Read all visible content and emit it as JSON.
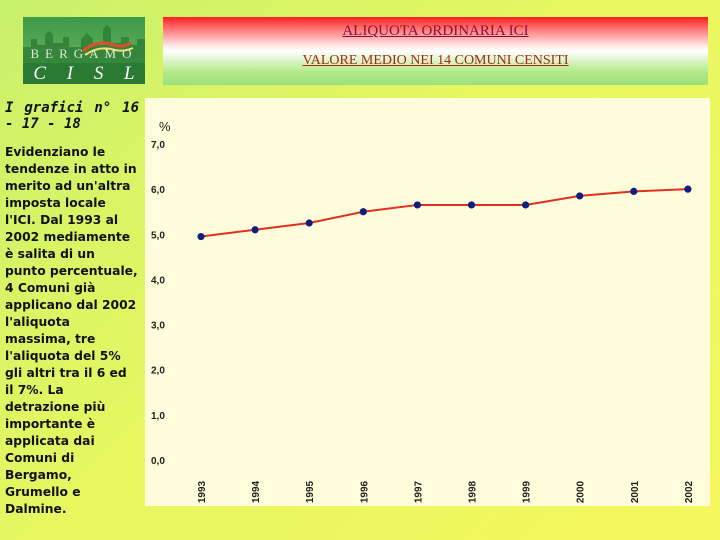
{
  "logo": {
    "city": "BERGAMO",
    "org_letters": [
      "C",
      "I",
      "S",
      "L"
    ]
  },
  "banner": {
    "title": "ALIQUOTA ORDINARIA ICI",
    "subtitle": "VALORE MEDIO NEI 14 COMUNI CENSITI"
  },
  "side": {
    "heading": "I grafici n° 16 - 17 - 18",
    "body": "Evidenziano le tendenze in atto in merito ad un'altra imposta locale l'ICI. Dal 1993 al 2002 mediamente è salita di un punto percentuale, 4 Comuni già applicano dal 2002 l'aliquota massima, tre l'aliquota del 5% gli altri tra il 6 ed il 7%. La detrazione più importante è applicata dai Comuni di Bergamo, Grumello e Dalmine."
  },
  "colors": {
    "line": "#e0301e",
    "marker": "#10207a",
    "plot_bg": "#fffcdc"
  },
  "chart_data": {
    "type": "line",
    "ylabel": "%",
    "categories": [
      "1993",
      "1994",
      "1995",
      "1996",
      "1997",
      "1998",
      "1999",
      "2000",
      "2001",
      "2002"
    ],
    "values": [
      4.95,
      5.1,
      5.25,
      5.5,
      5.65,
      5.65,
      5.65,
      5.85,
      5.95,
      6.0
    ],
    "ylim": [
      0,
      7
    ],
    "yticks": [
      0,
      1,
      2,
      3,
      4,
      5,
      6,
      7
    ],
    "ytick_labels": [
      "0,0",
      "1,0",
      "2,0",
      "3,0",
      "4,0",
      "5,0",
      "6,0",
      "7,0"
    ],
    "grid": false,
    "legend": false
  }
}
